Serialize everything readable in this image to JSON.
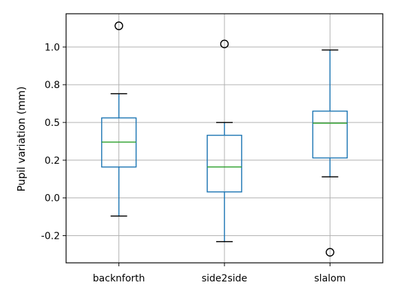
{
  "chart_data": {
    "type": "box",
    "title": "",
    "xlabel": "",
    "ylabel": "Pupil variation (mm)",
    "categories": [
      "backnforth",
      "side2side",
      "slalom"
    ],
    "boxes": [
      {
        "category": "backnforth",
        "whisker_low": -0.12,
        "q1": 0.205,
        "median": 0.37,
        "q3": 0.53,
        "whisker_high": 0.69,
        "outliers": [
          1.14
        ]
      },
      {
        "category": "side2side",
        "whisker_low": -0.29,
        "q1": 0.04,
        "median": 0.205,
        "q3": 0.415,
        "whisker_high": 0.5,
        "outliers": [
          1.02
        ]
      },
      {
        "category": "slalom",
        "whisker_low": 0.14,
        "q1": 0.265,
        "median": 0.495,
        "q3": 0.575,
        "whisker_high": 0.98,
        "outliers": [
          -0.36
        ]
      }
    ],
    "yticks": [
      {
        "value": -0.25,
        "label": "-0.2"
      },
      {
        "value": 0.0,
        "label": "0.0"
      },
      {
        "value": 0.25,
        "label": "0.2"
      },
      {
        "value": 0.5,
        "label": "0.5"
      },
      {
        "value": 0.75,
        "label": "0.8"
      },
      {
        "value": 1.0,
        "label": "1.0"
      }
    ],
    "ylim": [
      -0.43,
      1.22
    ],
    "grid": true,
    "colors": {
      "box": "#1f77b4",
      "median": "#2ca02c",
      "cap": "#000000",
      "outlier": "#000000",
      "grid": "#b0b0b0",
      "frame": "#000000"
    }
  }
}
